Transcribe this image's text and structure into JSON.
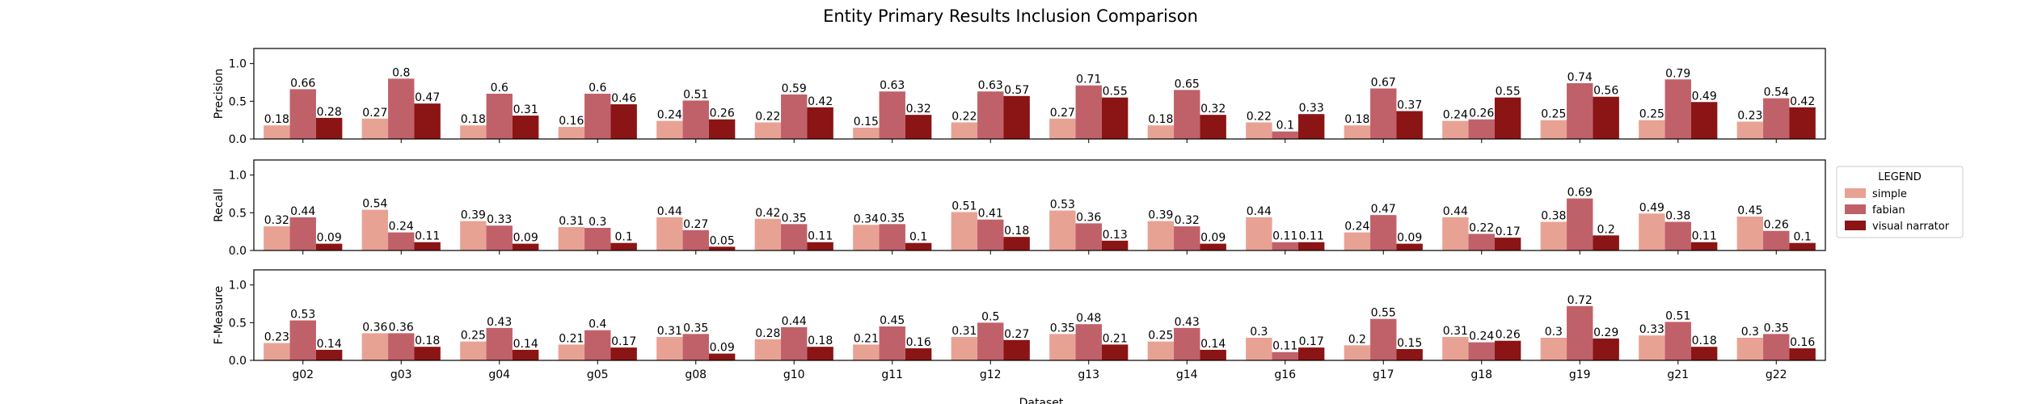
{
  "chart_data": {
    "type": "bar",
    "title": "Entity Primary Results Inclusion Comparison",
    "xlabel": "Dataset",
    "categories": [
      "g02",
      "g03",
      "g04",
      "g05",
      "g08",
      "g10",
      "g11",
      "g12",
      "g13",
      "g14",
      "g16",
      "g17",
      "g18",
      "g19",
      "g21",
      "g22"
    ],
    "ylim": [
      0,
      1.2
    ],
    "yticks": [
      "0.0",
      "0.5",
      "1.0"
    ],
    "legend": {
      "title": "LEGEND",
      "placement": "right",
      "entries": [
        "simple",
        "fabian",
        "visual narrator"
      ]
    },
    "colors": {
      "simple": "#e8a294",
      "fabian": "#c0616a",
      "visual narrator": "#8b1414"
    },
    "panels": [
      {
        "ylabel": "Precision",
        "series": [
          {
            "name": "simple",
            "values": [
              0.18,
              0.27,
              0.18,
              0.16,
              0.24,
              0.22,
              0.15,
              0.22,
              0.27,
              0.18,
              0.22,
              0.18,
              0.24,
              0.25,
              0.25,
              0.23
            ]
          },
          {
            "name": "fabian",
            "values": [
              0.66,
              0.8,
              0.6,
              0.6,
              0.51,
              0.59,
              0.63,
              0.63,
              0.71,
              0.65,
              0.1,
              0.67,
              0.26,
              0.74,
              0.79,
              0.54
            ]
          },
          {
            "name": "visual narrator",
            "values": [
              0.28,
              0.47,
              0.31,
              0.46,
              0.26,
              0.42,
              0.32,
              0.57,
              0.55,
              0.32,
              0.33,
              0.37,
              0.55,
              0.56,
              0.49,
              0.42
            ]
          }
        ]
      },
      {
        "ylabel": "Recall",
        "series": [
          {
            "name": "simple",
            "values": [
              0.32,
              0.54,
              0.39,
              0.31,
              0.44,
              0.42,
              0.34,
              0.51,
              0.53,
              0.39,
              0.44,
              0.24,
              0.44,
              0.38,
              0.49,
              0.45
            ]
          },
          {
            "name": "fabian",
            "values": [
              0.44,
              0.24,
              0.33,
              0.3,
              0.27,
              0.35,
              0.35,
              0.41,
              0.36,
              0.32,
              0.11,
              0.47,
              0.22,
              0.69,
              0.38,
              0.26
            ]
          },
          {
            "name": "visual narrator",
            "values": [
              0.09,
              0.11,
              0.09,
              0.1,
              0.05,
              0.11,
              0.1,
              0.18,
              0.13,
              0.09,
              0.11,
              0.09,
              0.17,
              0.2,
              0.11,
              0.1
            ]
          }
        ]
      },
      {
        "ylabel": "F-Measure",
        "series": [
          {
            "name": "simple",
            "values": [
              0.23,
              0.36,
              0.25,
              0.21,
              0.31,
              0.28,
              0.21,
              0.31,
              0.35,
              0.25,
              0.3,
              0.2,
              0.31,
              0.3,
              0.33,
              0.3
            ]
          },
          {
            "name": "fabian",
            "values": [
              0.53,
              0.36,
              0.43,
              0.4,
              0.35,
              0.44,
              0.45,
              0.5,
              0.48,
              0.43,
              0.11,
              0.55,
              0.24,
              0.72,
              0.51,
              0.35
            ]
          },
          {
            "name": "visual narrator",
            "values": [
              0.14,
              0.18,
              0.14,
              0.17,
              0.09,
              0.18,
              0.16,
              0.27,
              0.21,
              0.14,
              0.17,
              0.15,
              0.26,
              0.29,
              0.18,
              0.16
            ]
          }
        ]
      }
    ]
  }
}
